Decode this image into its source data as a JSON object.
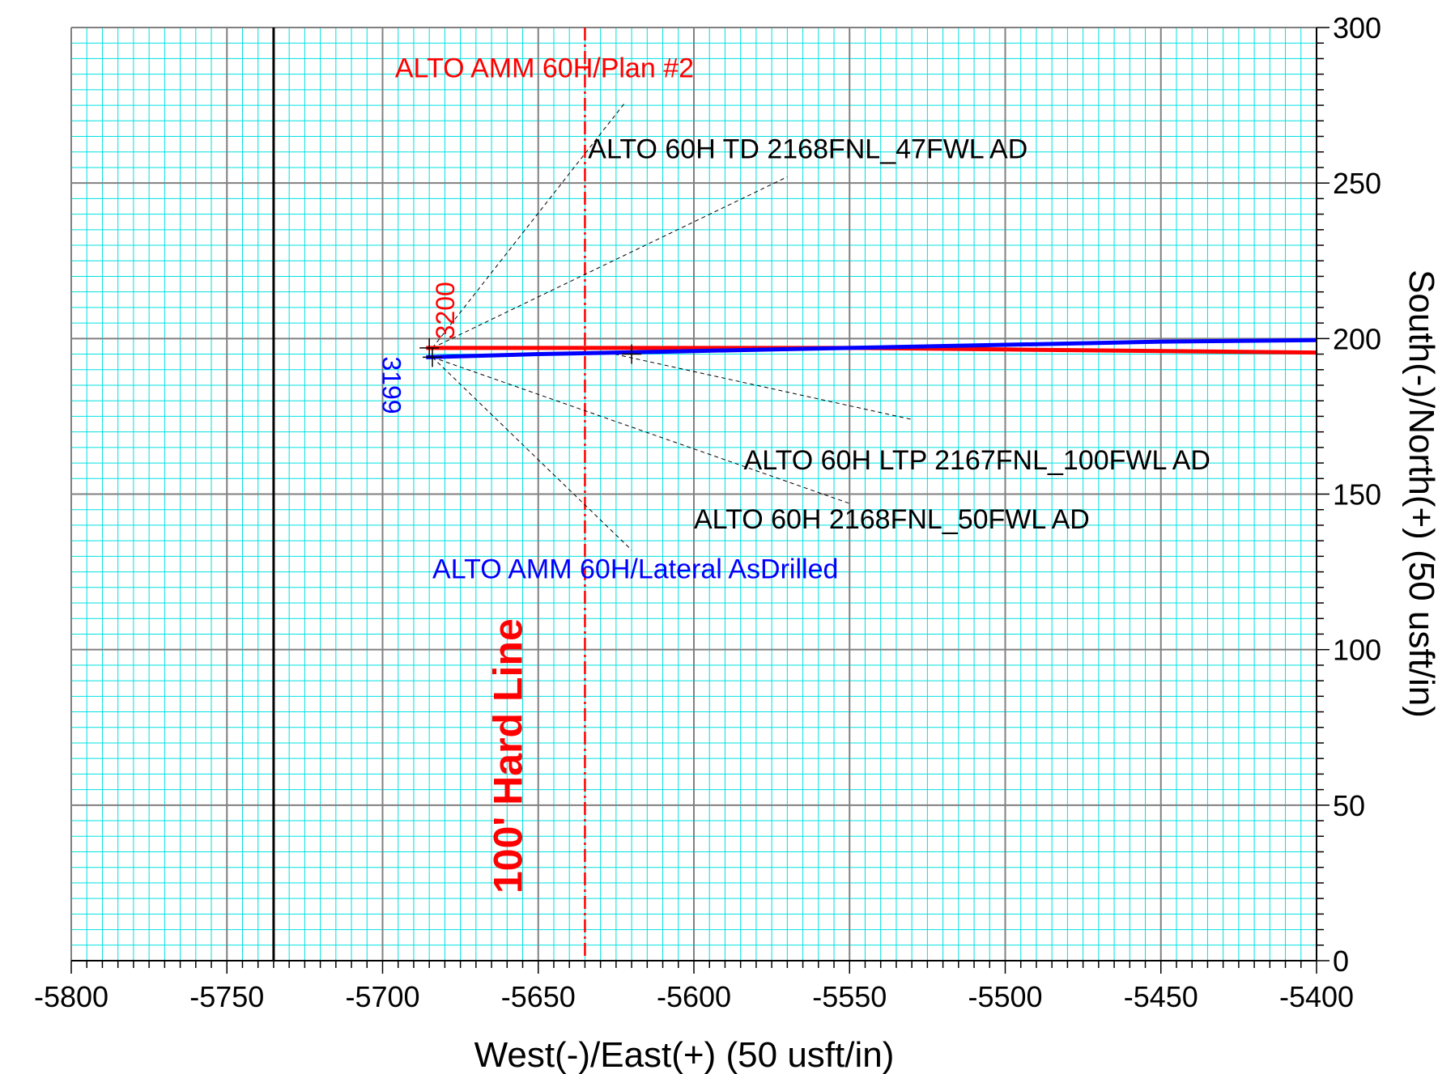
{
  "chart_data": {
    "type": "line",
    "title": "",
    "xlabel": "West(-)/East(+) (50 usft/in)",
    "ylabel": "South(-)/North(+) (50 usft/in)",
    "xlim": [
      -5800,
      -5400
    ],
    "ylim": [
      0,
      300
    ],
    "x_ticks": [
      "-5800",
      "-5750",
      "-5700",
      "-5650",
      "-5600",
      "-5550",
      "-5500",
      "-5450",
      "-5400"
    ],
    "y_ticks": [
      "0",
      "50",
      "100",
      "150",
      "200",
      "250",
      "300"
    ],
    "grid": true,
    "colors": {
      "grid_minor": "#00e0e0",
      "grid_major": "#808080",
      "plan": "#ff0000",
      "asdrilled": "#0000ff",
      "hardline": "#ff0000",
      "leader": "#000000"
    },
    "series": [
      {
        "name": "ALTO AMM 60H/Plan #2",
        "color": "#ff0000",
        "points": [
          [
            -5686,
            197
          ],
          [
            -5640,
            197
          ],
          [
            -5600,
            197
          ],
          [
            -5550,
            197
          ],
          [
            -5500,
            196.5
          ],
          [
            -5450,
            196
          ],
          [
            -5400,
            195.5
          ]
        ]
      },
      {
        "name": "ALTO AMM 60H/Lateral AsDrilled",
        "color": "#0000ff",
        "points": [
          [
            -5686,
            194
          ],
          [
            -5650,
            195
          ],
          [
            -5600,
            196
          ],
          [
            -5550,
            197
          ],
          [
            -5500,
            198
          ],
          [
            -5450,
            199
          ],
          [
            -5400,
            199.5
          ]
        ]
      }
    ],
    "reference_lines": [
      {
        "x": -5735,
        "color": "#000000",
        "style": "solid"
      },
      {
        "x": -5635,
        "color": "#ff0000",
        "style": "dash-dot",
        "label": "100' Hard Line"
      }
    ],
    "markers": [
      {
        "x": -5685,
        "y": 197
      },
      {
        "x": -5684,
        "y": 194
      },
      {
        "x": -5620,
        "y": 195
      }
    ],
    "md_labels": [
      {
        "text": "3200",
        "x": -5677,
        "y": 209,
        "color": "#ff0000"
      },
      {
        "text": "3199",
        "x": -5700,
        "y": 185,
        "color": "#0000ff"
      }
    ],
    "annotations": [
      {
        "text": "ALTO AMM 60H/Plan #2",
        "x": -5696,
        "y": 284,
        "color": "#ff0000",
        "leader_from": [
          -5684,
          197
        ],
        "leader_to": [
          -5622,
          276
        ]
      },
      {
        "text": "ALTO 60H TD 2168FNL_47FWL AD",
        "x": -5634,
        "y": 258,
        "color": "#000000",
        "leader_from": [
          -5684,
          197
        ],
        "leader_to": [
          -5570,
          252
        ]
      },
      {
        "text": "ALTO 60H LTP 2167FNL_100FWL AD",
        "x": -5584,
        "y": 158,
        "color": "#000000",
        "leader_from": [
          -5630,
          196
        ],
        "leader_to": [
          -5530,
          174
        ]
      },
      {
        "text": "ALTO 60H 2168FNL_50FWL AD",
        "x": -5600,
        "y": 139,
        "color": "#000000",
        "leader_from": [
          -5684,
          194
        ],
        "leader_to": [
          -5550,
          147
        ]
      },
      {
        "text": "ALTO AMM 60H/Lateral AsDrilled",
        "x": -5684,
        "y": 123,
        "color": "#0000ff",
        "leader_from": [
          -5684,
          194
        ],
        "leader_to": [
          -5620,
          132
        ]
      }
    ]
  }
}
